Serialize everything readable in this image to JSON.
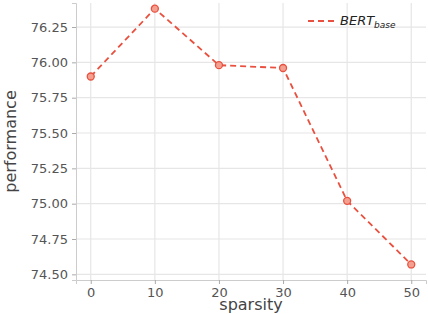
{
  "chart_data": {
    "type": "line",
    "x_label": "sparsity",
    "y_label": "performance",
    "x": [
      0,
      10,
      20,
      30,
      40,
      50
    ],
    "series": [
      {
        "name": "BERTbase",
        "color": "#e8513f",
        "values": [
          75.9,
          76.38,
          75.98,
          75.96,
          75.02,
          74.57
        ],
        "marker": "circle",
        "line_style": "dashed"
      }
    ],
    "xlim": [
      -2.3,
      52.3
    ],
    "xticks": [
      0,
      10,
      20,
      30,
      40,
      50
    ],
    "ylim": [
      74.46,
      76.42
    ],
    "yticks": [
      {
        "value": 74.5,
        "label": "74.50"
      },
      {
        "value": 74.75,
        "label": "74.75"
      },
      {
        "value": 75,
        "label": "75.00"
      },
      {
        "value": 75.25,
        "label": "75.25"
      },
      {
        "value": 75.5,
        "label": "75.50"
      },
      {
        "value": 75.75,
        "label": "75.75"
      },
      {
        "value": 76,
        "label": "76.00"
      },
      {
        "value": 76.25,
        "label": "76.25"
      }
    ],
    "grid": true,
    "legend": "top-right"
  }
}
